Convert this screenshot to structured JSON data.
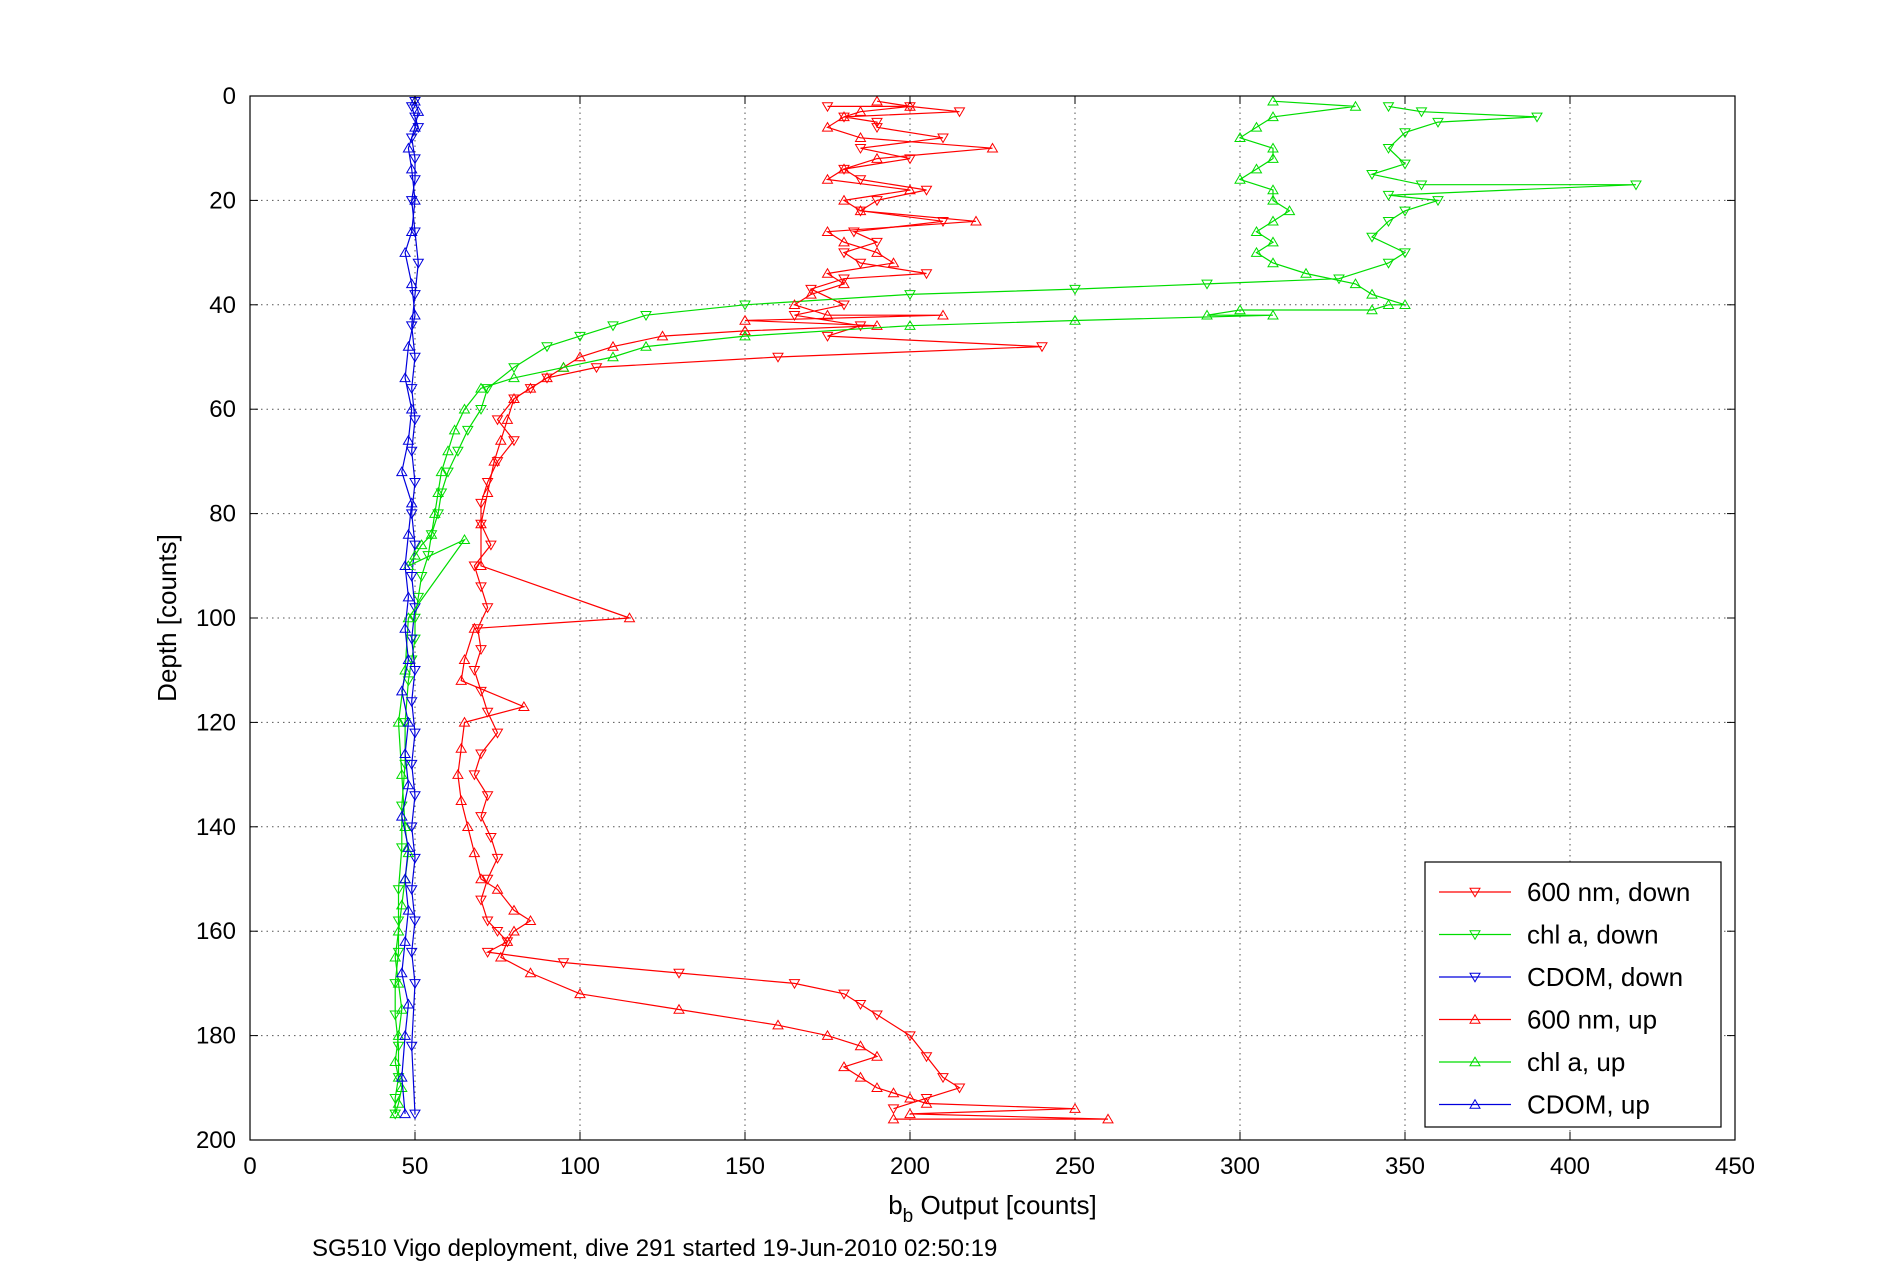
{
  "figure": {
    "footer_text": "SG510 Vigo deployment, dive 291 started 19-Jun-2010 02:50:19"
  },
  "chart_data": {
    "type": "line",
    "title": "",
    "xlabel_main": "b",
    "xlabel_sub": "b",
    "xlabel_rest": " Output [counts]",
    "ylabel": "Depth [counts]",
    "xlim": [
      0,
      450
    ],
    "ylim": [
      0,
      200
    ],
    "y_reversed": true,
    "grid": "dotted",
    "legend_position": "bottom-right",
    "xticks": [
      0,
      50,
      100,
      150,
      200,
      250,
      300,
      350,
      400,
      450
    ],
    "yticks": [
      0,
      20,
      40,
      60,
      80,
      100,
      120,
      140,
      160,
      180,
      200
    ],
    "series": [
      {
        "name": "600 nm, down",
        "color": "#ff0000",
        "marker": "triangle-down",
        "x": [
          175,
          200,
          215,
          180,
          190,
          190,
          210,
          185,
          200,
          180,
          185,
          205,
          190,
          185,
          210,
          183,
          190,
          180,
          185,
          205,
          180,
          170,
          180,
          165,
          185,
          175,
          240,
          160,
          105,
          90,
          85,
          80,
          75,
          80,
          75,
          72,
          70,
          70,
          73,
          68,
          70,
          72,
          69,
          70,
          68,
          70,
          72,
          75,
          70,
          68,
          72,
          70,
          73,
          75,
          72,
          70,
          72,
          75,
          78,
          72,
          95,
          130,
          165,
          180,
          185,
          190,
          200,
          205,
          210,
          215,
          205,
          195
        ],
        "y": [
          2,
          2,
          3,
          4,
          5,
          6,
          8,
          10,
          12,
          14,
          16,
          18,
          20,
          22,
          24,
          26,
          28,
          30,
          32,
          34,
          35,
          37,
          40,
          42,
          44,
          46,
          48,
          50,
          52,
          54,
          56,
          58,
          62,
          66,
          70,
          74,
          78,
          82,
          86,
          90,
          94,
          98,
          102,
          106,
          110,
          114,
          118,
          122,
          126,
          130,
          134,
          138,
          142,
          146,
          150,
          154,
          158,
          160,
          162,
          164,
          166,
          168,
          170,
          172,
          174,
          176,
          180,
          184,
          188,
          190,
          192,
          194
        ]
      },
      {
        "name": "chl a, down",
        "color": "#00dd00",
        "marker": "triangle-down",
        "x": [
          345,
          355,
          390,
          360,
          350,
          345,
          350,
          340,
          355,
          420,
          345,
          360,
          350,
          345,
          340,
          350,
          345,
          330,
          290,
          250,
          200,
          150,
          120,
          110,
          100,
          90,
          80,
          72,
          70,
          66,
          63,
          60,
          58,
          57,
          55,
          54,
          52,
          51,
          50,
          50,
          49,
          48,
          47,
          47,
          46,
          46,
          45,
          45,
          45,
          44,
          44,
          45,
          45,
          44,
          44
        ],
        "y": [
          2,
          3,
          4,
          5,
          7,
          10,
          13,
          15,
          17,
          17,
          19,
          20,
          22,
          24,
          27,
          30,
          32,
          35,
          36,
          37,
          38,
          40,
          42,
          44,
          46,
          48,
          52,
          56,
          60,
          64,
          68,
          72,
          76,
          80,
          84,
          88,
          92,
          96,
          100,
          104,
          108,
          112,
          120,
          128,
          136,
          144,
          152,
          158,
          164,
          170,
          176,
          182,
          188,
          192,
          195
        ]
      },
      {
        "name": "CDOM, down",
        "color": "#0000dd",
        "marker": "triangle-down",
        "x": [
          50,
          49,
          50,
          51,
          49,
          50,
          50,
          49,
          50,
          51,
          50,
          49,
          50,
          49,
          50,
          49,
          50,
          49,
          50,
          49,
          50,
          49,
          50,
          49,
          50,
          49,
          50,
          49,
          50,
          49,
          50,
          49,
          50,
          49,
          50
        ],
        "y": [
          1,
          2,
          4,
          6,
          8,
          12,
          16,
          20,
          26,
          32,
          38,
          44,
          50,
          56,
          62,
          68,
          74,
          80,
          86,
          92,
          98,
          104,
          110,
          116,
          122,
          128,
          134,
          140,
          146,
          152,
          158,
          164,
          170,
          182,
          195
        ]
      },
      {
        "name": "600 nm, up",
        "color": "#ff0000",
        "marker": "triangle-up",
        "x": [
          190,
          200,
          185,
          180,
          175,
          185,
          225,
          190,
          180,
          175,
          200,
          180,
          185,
          220,
          175,
          180,
          190,
          195,
          175,
          180,
          170,
          165,
          175,
          210,
          150,
          190,
          150,
          125,
          110,
          100,
          95,
          90,
          85,
          80,
          78,
          76,
          74,
          72,
          70,
          70,
          115,
          68,
          65,
          64,
          83,
          65,
          64,
          63,
          64,
          66,
          68,
          70,
          75,
          80,
          85,
          80,
          78,
          76,
          85,
          100,
          130,
          160,
          175,
          185,
          190,
          180,
          185,
          190,
          195,
          200,
          205,
          250,
          200,
          260,
          195
        ],
        "y": [
          1,
          2,
          3,
          4,
          6,
          8,
          10,
          12,
          14,
          16,
          18,
          20,
          22,
          24,
          26,
          28,
          30,
          32,
          34,
          36,
          38,
          40,
          42,
          42,
          43,
          44,
          45,
          46,
          48,
          50,
          52,
          54,
          56,
          58,
          62,
          66,
          70,
          76,
          82,
          90,
          100,
          102,
          108,
          112,
          117,
          120,
          125,
          130,
          135,
          140,
          145,
          150,
          152,
          156,
          158,
          160,
          162,
          165,
          168,
          172,
          175,
          178,
          180,
          182,
          184,
          186,
          188,
          190,
          191,
          192,
          193,
          194,
          195,
          196,
          196
        ]
      },
      {
        "name": "chl a, up",
        "color": "#00dd00",
        "marker": "triangle-up",
        "x": [
          310,
          335,
          310,
          305,
          300,
          310,
          310,
          305,
          300,
          310,
          310,
          315,
          310,
          305,
          310,
          305,
          310,
          320,
          335,
          340,
          350,
          345,
          340,
          300,
          290,
          310,
          250,
          200,
          150,
          120,
          110,
          95,
          80,
          70,
          65,
          62,
          60,
          58,
          57,
          56,
          55,
          52,
          50,
          48,
          65,
          48,
          47,
          45,
          46,
          47,
          48,
          47,
          46,
          45,
          44,
          45,
          46,
          45,
          44,
          45,
          46,
          45,
          44
        ],
        "y": [
          1,
          2,
          4,
          6,
          8,
          10,
          12,
          14,
          16,
          18,
          20,
          22,
          24,
          26,
          28,
          30,
          32,
          34,
          36,
          38,
          40,
          40,
          41,
          41,
          42,
          42,
          43,
          44,
          46,
          48,
          50,
          52,
          54,
          56,
          60,
          64,
          68,
          72,
          76,
          80,
          84,
          86,
          88,
          90,
          85,
          100,
          110,
          120,
          130,
          140,
          145,
          150,
          155,
          160,
          165,
          170,
          175,
          180,
          185,
          188,
          190,
          193,
          195
        ]
      },
      {
        "name": "CDOM, up",
        "color": "#0000dd",
        "marker": "triangle-up",
        "x": [
          50,
          51,
          50,
          48,
          49,
          50,
          49,
          47,
          49,
          50,
          48,
          47,
          49,
          48,
          46,
          49,
          48,
          47,
          48,
          47,
          48,
          46,
          48,
          47,
          48,
          46,
          48,
          47,
          48,
          47,
          46,
          48,
          47,
          46,
          47
        ],
        "y": [
          1,
          3,
          6,
          10,
          14,
          20,
          26,
          30,
          36,
          42,
          48,
          54,
          60,
          66,
          72,
          78,
          84,
          90,
          96,
          102,
          108,
          114,
          120,
          126,
          132,
          138,
          144,
          150,
          156,
          162,
          168,
          174,
          180,
          188,
          195
        ]
      }
    ]
  }
}
